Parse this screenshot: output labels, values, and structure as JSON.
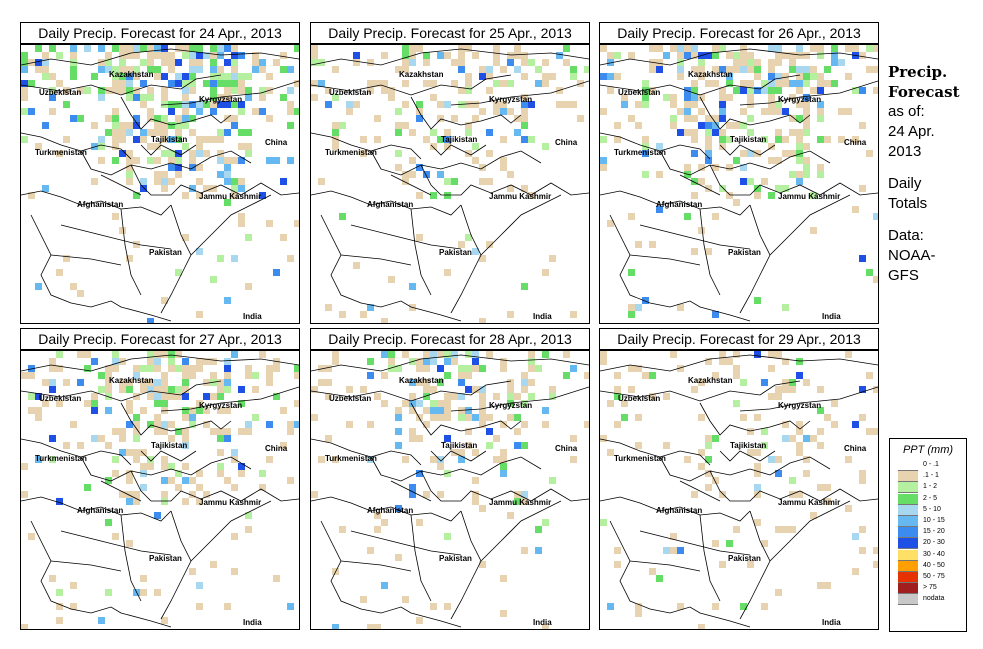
{
  "panels": [
    {
      "title": "Daily Precip. Forecast for  24 Apr., 2013",
      "rain_level": 1.0
    },
    {
      "title": "Daily Precip. Forecast for  25 Apr., 2013",
      "rain_level": 0.55
    },
    {
      "title": "Daily Precip. Forecast for  26 Apr., 2013",
      "rain_level": 0.85
    },
    {
      "title": "Daily Precip. Forecast for  27 Apr., 2013",
      "rain_level": 0.7
    },
    {
      "title": "Daily Precip. Forecast for  28 Apr., 2013",
      "rain_level": 0.6
    },
    {
      "title": "Daily Precip. Forecast for  29 Apr., 2013",
      "rain_level": 0.35
    }
  ],
  "country_labels": {
    "kazakhstan": "Kazakhstan",
    "uzbekistan": "Uzbekistan",
    "kyrgyzstan": "Kyrgyzstan",
    "tajikistan": "Tajikistan",
    "turkmenistan": "Turkmenistan",
    "china": "China",
    "afghanistan": "Afghanistan",
    "jammu_kashmir": "Jammu Kashmir",
    "pakistan": "Pakistan",
    "india": "India"
  },
  "side": {
    "title_line1": "Precip.",
    "title_line2": "Forecast",
    "asof_line1": "as of:",
    "asof_line2": "24 Apr.",
    "asof_line3": "2013",
    "totals_line1": "Daily",
    "totals_line2": "Totals",
    "data_line1": "Data:",
    "data_line2": "NOAA-",
    "data_line3": "GFS"
  },
  "legend": {
    "title": "PPT (mm)",
    "items": [
      {
        "label": "0 - .1",
        "color": "#ffffff"
      },
      {
        "label": ".1 - 1",
        "color": "#e8d3b0"
      },
      {
        "label": "1 - 2",
        "color": "#b4f0a0"
      },
      {
        "label": "2 - 5",
        "color": "#66dd66"
      },
      {
        "label": "5 - 10",
        "color": "#a8d8f0"
      },
      {
        "label": "10 - 15",
        "color": "#66b8f0"
      },
      {
        "label": "15 - 20",
        "color": "#3c8cf0"
      },
      {
        "label": "20 - 30",
        "color": "#1e50e6"
      },
      {
        "label": "30 - 40",
        "color": "#ffe066"
      },
      {
        "label": "40 - 50",
        "color": "#ffa000"
      },
      {
        "label": "50 - 75",
        "color": "#e63200"
      },
      {
        "label": "> 75",
        "color": "#a01e1e"
      },
      {
        "label": "nodata",
        "color": "#c8c8c8"
      }
    ]
  }
}
